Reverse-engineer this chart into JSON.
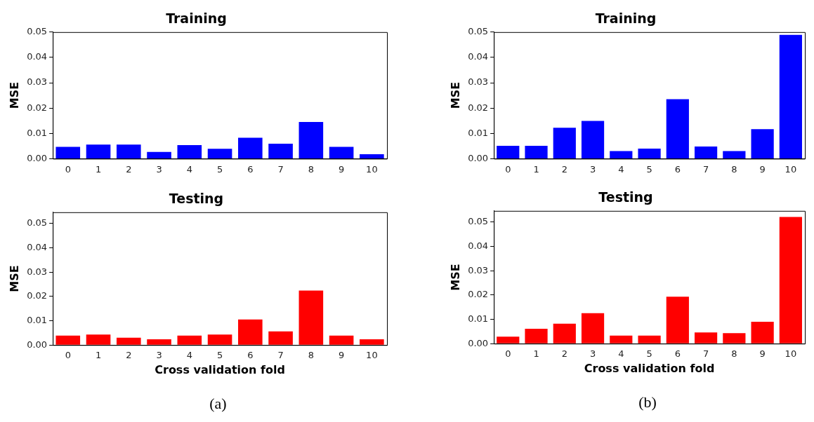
{
  "chart_data": [
    {
      "type": "bar",
      "title": "Training",
      "ylabel": "MSE",
      "categories": [
        "0",
        "1",
        "2",
        "3",
        "4",
        "5",
        "6",
        "7",
        "8",
        "9",
        "10"
      ],
      "values": [
        0.0047,
        0.0056,
        0.0056,
        0.0027,
        0.0054,
        0.0039,
        0.0083,
        0.0059,
        0.0145,
        0.0047,
        0.0018
      ],
      "color": "#0000ff",
      "ylim": [
        0,
        0.05
      ],
      "yticks": [
        {
          "value": 0,
          "label": "0.00"
        },
        {
          "value": 0.01,
          "label": "0.01"
        },
        {
          "value": 0.02,
          "label": "0.02"
        },
        {
          "value": 0.03,
          "label": "0.03"
        },
        {
          "value": 0.04,
          "label": "0.04"
        },
        {
          "value": 0.05,
          "label": "0.05"
        }
      ],
      "grid": false,
      "legend": false
    },
    {
      "type": "bar",
      "title": "Testing",
      "ylabel": "MSE",
      "xlabel": "Cross validation fold",
      "annotations": [
        "(a)"
      ],
      "categories": [
        "0",
        "1",
        "2",
        "3",
        "4",
        "5",
        "6",
        "7",
        "8",
        "9",
        "10"
      ],
      "values": [
        0.0039,
        0.0043,
        0.003,
        0.0024,
        0.0039,
        0.0043,
        0.0105,
        0.0056,
        0.0224,
        0.0039,
        0.0024
      ],
      "color": "#ff0000",
      "ylim": [
        0,
        0.0546
      ],
      "yticks": [
        {
          "value": 0,
          "label": "0.00"
        },
        {
          "value": 0.01,
          "label": "0.01"
        },
        {
          "value": 0.02,
          "label": "0.02"
        },
        {
          "value": 0.03,
          "label": "0.03"
        },
        {
          "value": 0.04,
          "label": "0.04"
        },
        {
          "value": 0.05,
          "label": "0.05"
        }
      ],
      "grid": false,
      "legend": false
    },
    {
      "type": "bar",
      "title": "Training",
      "ylabel": "MSE",
      "categories": [
        "0",
        "1",
        "2",
        "3",
        "4",
        "5",
        "6",
        "7",
        "8",
        "9",
        "10"
      ],
      "values": [
        0.0051,
        0.0051,
        0.0122,
        0.0149,
        0.003,
        0.004,
        0.0235,
        0.0048,
        0.003,
        0.0117,
        0.0489
      ],
      "color": "#0000ff",
      "ylim": [
        0,
        0.05
      ],
      "yticks": [
        {
          "value": 0,
          "label": "0.00"
        },
        {
          "value": 0.01,
          "label": "0.01"
        },
        {
          "value": 0.02,
          "label": "0.02"
        },
        {
          "value": 0.03,
          "label": "0.03"
        },
        {
          "value": 0.04,
          "label": "0.04"
        },
        {
          "value": 0.05,
          "label": "0.05"
        }
      ],
      "grid": false,
      "legend": false
    },
    {
      "type": "bar",
      "title": "Testing",
      "ylabel": "MSE",
      "xlabel": "Cross validation fold",
      "annotations": [
        "(b)"
      ],
      "categories": [
        "0",
        "1",
        "2",
        "3",
        "4",
        "5",
        "6",
        "7",
        "8",
        "9",
        "10"
      ],
      "values": [
        0.0029,
        0.0061,
        0.0082,
        0.0125,
        0.0033,
        0.0033,
        0.0193,
        0.0046,
        0.0043,
        0.009,
        0.0521
      ],
      "color": "#ff0000",
      "ylim": [
        0,
        0.0546
      ],
      "yticks": [
        {
          "value": 0,
          "label": "0.00"
        },
        {
          "value": 0.01,
          "label": "0.01"
        },
        {
          "value": 0.02,
          "label": "0.02"
        },
        {
          "value": 0.03,
          "label": "0.03"
        },
        {
          "value": 0.04,
          "label": "0.04"
        },
        {
          "value": 0.05,
          "label": "0.05"
        }
      ],
      "grid": false,
      "legend": false
    }
  ]
}
